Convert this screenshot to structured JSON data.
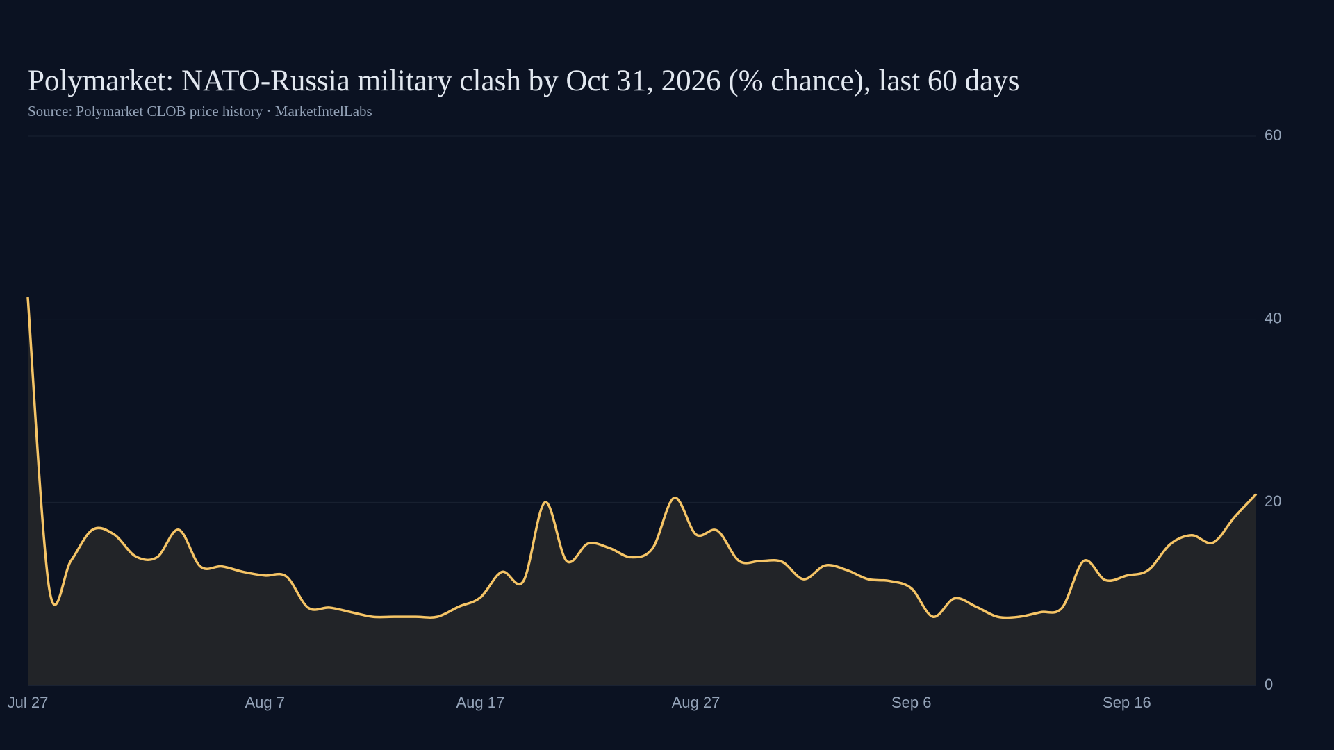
{
  "chart_data": {
    "type": "area",
    "title": "Polymarket: NATO-Russia military clash by Oct 31, 2026 (% chance), last 60 days",
    "subtitle": "Source: Polymarket CLOB price history · MarketIntelLabs",
    "x": [
      "Jul 27",
      "Jul 28",
      "Jul 29",
      "Jul 30",
      "Jul 31",
      "Aug 1",
      "Aug 2",
      "Aug 3",
      "Aug 4",
      "Aug 5",
      "Aug 6",
      "Aug 7",
      "Aug 8",
      "Aug 9",
      "Aug 10",
      "Aug 11",
      "Aug 12",
      "Aug 13",
      "Aug 14",
      "Aug 15",
      "Aug 16",
      "Aug 17",
      "Aug 18",
      "Aug 19",
      "Aug 20",
      "Aug 21",
      "Aug 22",
      "Aug 23",
      "Aug 24",
      "Aug 25",
      "Aug 26",
      "Aug 27",
      "Aug 28",
      "Aug 29",
      "Aug 30",
      "Aug 31",
      "Sep 1",
      "Sep 2",
      "Sep 3",
      "Sep 4",
      "Sep 5",
      "Sep 6",
      "Sep 7",
      "Sep 8",
      "Sep 9",
      "Sep 10",
      "Sep 11",
      "Sep 12",
      "Sep 13",
      "Sep 14",
      "Sep 15",
      "Sep 16",
      "Sep 17",
      "Sep 18",
      "Sep 19",
      "Sep 20",
      "Sep 21",
      "Sep 22"
    ],
    "series": [
      {
        "color": "#f5c466",
        "values": [
          42.4,
          10.5,
          13.6,
          17.0,
          16.5,
          14.1,
          14.0,
          17.0,
          13.0,
          13.0,
          12.4,
          12.0,
          11.9,
          8.5,
          8.5,
          8.0,
          7.5,
          7.5,
          7.5,
          7.5,
          8.6,
          9.6,
          12.4,
          11.4,
          20.0,
          13.6,
          15.5,
          15.0,
          14.0,
          15.0,
          20.5,
          16.5,
          16.9,
          13.6,
          13.6,
          13.5,
          11.6,
          13.1,
          12.6,
          11.6,
          11.4,
          10.6,
          7.5,
          9.5,
          8.6,
          7.5,
          7.5,
          8.0,
          8.5,
          13.6,
          11.5,
          12.0,
          12.6,
          15.4,
          16.4,
          15.6,
          18.4,
          20.9
        ]
      }
    ],
    "xticks": [
      "Jul 27",
      "Aug 7",
      "Aug 17",
      "Aug 27",
      "Sep 6",
      "Sep 16"
    ],
    "ylim": [
      0,
      60
    ],
    "yticks": [
      0,
      20,
      40,
      60
    ],
    "grid": true
  }
}
